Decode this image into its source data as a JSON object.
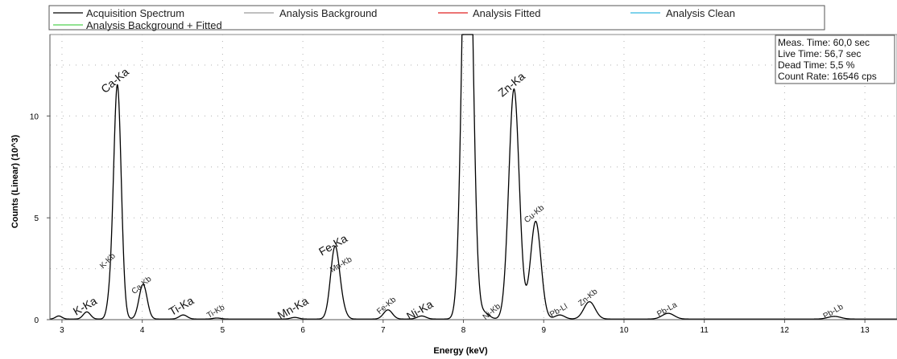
{
  "legend": {
    "items": [
      {
        "label": "Acquisition Spectrum",
        "color": "#000000"
      },
      {
        "label": "Analysis Background",
        "color": "#9a9a9a"
      },
      {
        "label": "Analysis Fitted",
        "color": "#e02020"
      },
      {
        "label": "Analysis Clean",
        "color": "#30b8e0"
      },
      {
        "label": "Analysis Background + Fitted",
        "color": "#50d050"
      }
    ]
  },
  "info_box": {
    "lines": [
      "Meas. Time: 60,0 sec",
      "Live Time: 56,7 sec",
      "Dead Time: 5,5 %",
      "Count Rate: 16546 cps"
    ]
  },
  "chart_data": {
    "type": "line",
    "xlabel": "Energy (keV)",
    "ylabel": "Counts (Linear) (10^3)",
    "xlim": [
      2.85,
      13.4
    ],
    "ylim": [
      0,
      14
    ],
    "x_ticks": [
      "3",
      "4",
      "5",
      "6",
      "7",
      "8",
      "9",
      "10",
      "11",
      "12",
      "13"
    ],
    "y_ticks": [
      "0",
      "5",
      "10"
    ],
    "grid": true,
    "series": [
      {
        "name": "Acquisition Spectrum",
        "baseline": 0.03,
        "peaks": [
          {
            "e": 2.96,
            "h": 0.15,
            "w": 0.04
          },
          {
            "e": 3.31,
            "h": 0.35,
            "w": 0.045
          },
          {
            "e": 3.59,
            "h": 0.6,
            "w": 0.035
          },
          {
            "e": 3.69,
            "h": 11.5,
            "w": 0.048
          },
          {
            "e": 4.01,
            "h": 1.7,
            "w": 0.05
          },
          {
            "e": 4.51,
            "h": 0.2,
            "w": 0.05
          },
          {
            "e": 4.93,
            "h": 0.05,
            "w": 0.05
          },
          {
            "e": 5.9,
            "h": 0.08,
            "w": 0.05
          },
          {
            "e": 6.4,
            "h": 3.5,
            "w": 0.055
          },
          {
            "e": 6.49,
            "h": 0.4,
            "w": 0.05
          },
          {
            "e": 7.06,
            "h": 0.45,
            "w": 0.055
          },
          {
            "e": 7.48,
            "h": 0.15,
            "w": 0.055
          },
          {
            "e": 8.05,
            "h": 25,
            "w": 0.063
          },
          {
            "e": 8.26,
            "h": 0.3,
            "w": 0.06
          },
          {
            "e": 8.63,
            "h": 11.3,
            "w": 0.065
          },
          {
            "e": 8.9,
            "h": 4.8,
            "w": 0.065
          },
          {
            "e": 9.2,
            "h": 0.2,
            "w": 0.06
          },
          {
            "e": 9.57,
            "h": 0.85,
            "w": 0.07
          },
          {
            "e": 10.55,
            "h": 0.28,
            "w": 0.075
          },
          {
            "e": 12.62,
            "h": 0.13,
            "w": 0.08
          }
        ]
      }
    ],
    "annotations": [
      {
        "text": "K-Ka",
        "x": 3.31,
        "y": 0.5,
        "size": "big",
        "rotate": -30
      },
      {
        "text": "K-Kb",
        "x": 3.59,
        "y": 2.8,
        "size": "small",
        "rotate": -45
      },
      {
        "text": "Ca-Ka",
        "x": 3.69,
        "y": 11.6,
        "size": "big",
        "rotate": -40
      },
      {
        "text": "Ca-Kb",
        "x": 4.01,
        "y": 1.6,
        "size": "small",
        "rotate": -40
      },
      {
        "text": "Ti-Ka",
        "x": 4.51,
        "y": 0.5,
        "size": "big",
        "rotate": -30
      },
      {
        "text": "Ti-Kb",
        "x": 4.93,
        "y": 0.3,
        "size": "small",
        "rotate": -30
      },
      {
        "text": "Mn-Ka",
        "x": 5.9,
        "y": 0.4,
        "size": "big",
        "rotate": -30
      },
      {
        "text": "Fe-Ka",
        "x": 6.4,
        "y": 3.5,
        "size": "big",
        "rotate": -30
      },
      {
        "text": "Mn-Kb",
        "x": 6.49,
        "y": 2.6,
        "size": "small",
        "rotate": -30
      },
      {
        "text": "Fe-Kb",
        "x": 7.06,
        "y": 0.6,
        "size": "small",
        "rotate": -40
      },
      {
        "text": "Ni-Ka",
        "x": 7.48,
        "y": 0.3,
        "size": "big",
        "rotate": -30
      },
      {
        "text": "Ni-Kb",
        "x": 8.37,
        "y": 0.3,
        "size": "small",
        "rotate": -40
      },
      {
        "text": "Zn-Ka",
        "x": 8.63,
        "y": 11.4,
        "size": "big",
        "rotate": -40
      },
      {
        "text": "Cu-Kb",
        "x": 8.9,
        "y": 5.1,
        "size": "small",
        "rotate": -40
      },
      {
        "text": "Pb-Ll",
        "x": 9.2,
        "y": 0.35,
        "size": "small",
        "rotate": -30
      },
      {
        "text": "Zn-Kb",
        "x": 9.57,
        "y": 1.0,
        "size": "small",
        "rotate": -40
      },
      {
        "text": "Pb-La",
        "x": 10.55,
        "y": 0.4,
        "size": "small",
        "rotate": -30
      },
      {
        "text": "Pb-Lb",
        "x": 12.62,
        "y": 0.3,
        "size": "small",
        "rotate": -30
      }
    ]
  }
}
